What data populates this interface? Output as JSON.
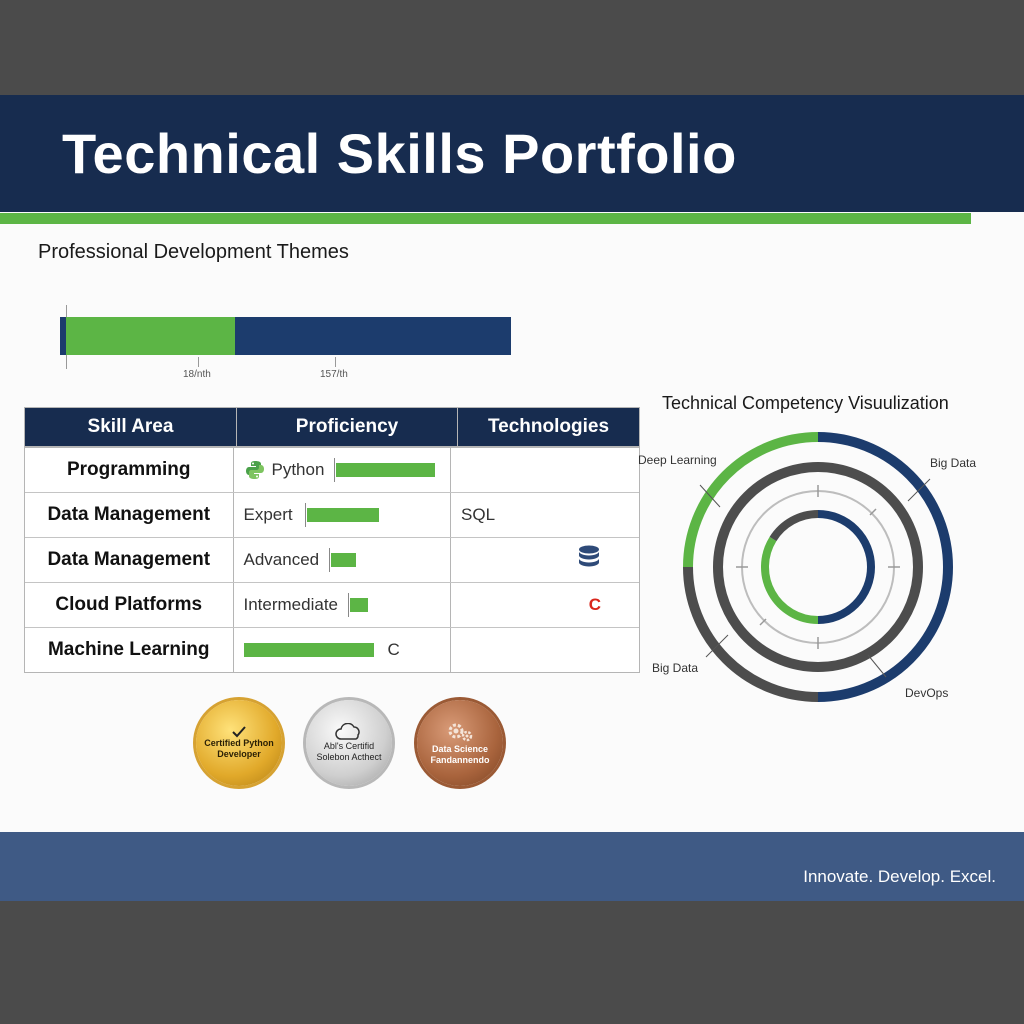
{
  "header": {
    "title": "Technical Skills Portfolio"
  },
  "themes": {
    "subtitle": "Professional Development Themes",
    "progress": 0.38,
    "tick_labels": [
      "18/nth",
      "157/th"
    ]
  },
  "table": {
    "headers": [
      "Skill Area",
      "Proficiency",
      "Technologies"
    ],
    "rows": [
      {
        "skill": "Programming",
        "proficiency": "Python",
        "level": 0.55,
        "tech": "",
        "icon": "python-icon"
      },
      {
        "skill": "Data Management",
        "proficiency": "Expert",
        "level": 0.4,
        "tech": "SQL",
        "icon": ""
      },
      {
        "skill": "Data Management",
        "proficiency": "Advanced",
        "level": 0.14,
        "tech": "",
        "icon": "database-icon"
      },
      {
        "skill": "Cloud Platforms",
        "proficiency": "Intermediate",
        "level": 0.1,
        "tech": "C",
        "icon": ""
      },
      {
        "skill": "Machine Learning",
        "proficiency": "",
        "level": 0.72,
        "tech": "",
        "icon": "",
        "trail": "C"
      }
    ]
  },
  "badges": [
    {
      "text": "Certified Python Developer",
      "icon": "checkmark-icon"
    },
    {
      "text": "Abl's Certifid Solebon Acthect",
      "icon": "cloud-icon"
    },
    {
      "text": "Data Science Fandannendo",
      "icon": "gears-icon"
    }
  ],
  "competency": {
    "title": "Technical Competency Visuulization",
    "labels": [
      "Deep Learning",
      "Big Data",
      "Big Data",
      "DevOps"
    ]
  },
  "colors": {
    "navy": "#172c4f",
    "green": "#5cb545",
    "footer": "#3f5a85",
    "gray": "#4b4b4b"
  },
  "footer": {
    "tagline": "Innovate. Develop. Excel."
  }
}
